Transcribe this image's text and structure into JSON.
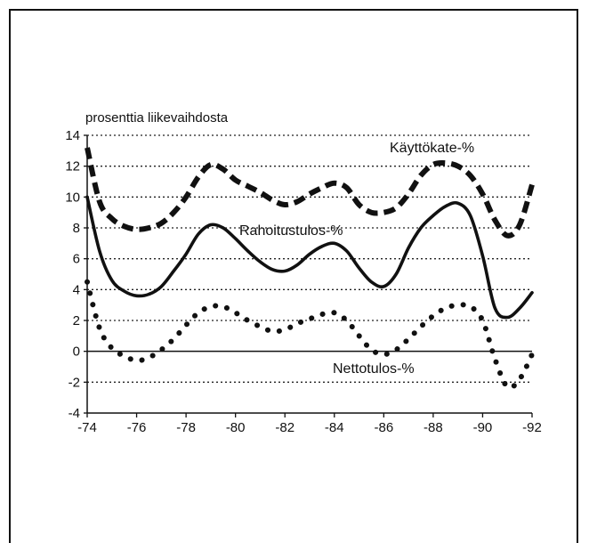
{
  "chart_data": {
    "type": "line",
    "ylabel": "prosenttia liikevaihdosta",
    "xlabel": "",
    "ylim": [
      -4,
      14
    ],
    "xlim": [
      1974,
      1992
    ],
    "yticks": [
      14,
      12,
      10,
      8,
      6,
      4,
      2,
      0,
      -2,
      -4
    ],
    "yticks_text": [
      "14",
      "12",
      "10",
      "8",
      "6",
      "4",
      "2",
      "0",
      "-2",
      "-4"
    ],
    "xticks": [
      1974,
      1976,
      1978,
      1980,
      1982,
      1984,
      1986,
      1988,
      1990,
      1992
    ],
    "xticks_text": [
      "-74",
      "-76",
      "-78",
      "-80",
      "-82",
      "-84",
      "-86",
      "-88",
      "-90",
      "-92"
    ],
    "grid": "horizontal dotted",
    "series": [
      {
        "name": "Käyttökate-%",
        "style": "dashed",
        "x": [
          1974,
          1974.5,
          1975,
          1975.5,
          1976,
          1976.5,
          1977,
          1977.5,
          1978,
          1978.5,
          1979,
          1979.5,
          1980,
          1980.5,
          1981,
          1981.5,
          1982,
          1982.5,
          1983,
          1983.5,
          1984,
          1984.5,
          1985,
          1985.5,
          1986,
          1986.5,
          1987,
          1987.5,
          1988,
          1988.5,
          1989,
          1989.5,
          1990,
          1990.5,
          1991,
          1991.5,
          1992
        ],
        "values": [
          13.2,
          9.7,
          8.6,
          8.1,
          7.9,
          8.0,
          8.3,
          9.0,
          10.0,
          11.3,
          12.1,
          11.8,
          11.1,
          10.7,
          10.3,
          9.8,
          9.5,
          9.7,
          10.2,
          10.6,
          10.9,
          10.6,
          9.5,
          9.0,
          9.0,
          9.3,
          10.2,
          11.4,
          12.1,
          12.2,
          12.0,
          11.4,
          10.2,
          8.5,
          7.5,
          8.2,
          10.8
        ]
      },
      {
        "name": "Rahoitustulos-%",
        "style": "thick",
        "x": [
          1974,
          1974.5,
          1975,
          1975.5,
          1976,
          1976.5,
          1977,
          1977.5,
          1978,
          1978.5,
          1979,
          1979.5,
          1980,
          1980.5,
          1981,
          1981.5,
          1982,
          1982.5,
          1983,
          1983.5,
          1984,
          1984.5,
          1985,
          1985.5,
          1986,
          1986.5,
          1987,
          1987.5,
          1988,
          1988.5,
          1989,
          1989.5,
          1990,
          1990.5,
          1991,
          1991.5,
          1992
        ],
        "values": [
          10.0,
          6.5,
          4.6,
          3.9,
          3.6,
          3.7,
          4.2,
          5.2,
          6.3,
          7.6,
          8.2,
          8.0,
          7.3,
          6.5,
          5.8,
          5.3,
          5.2,
          5.6,
          6.3,
          6.8,
          7.0,
          6.5,
          5.4,
          4.5,
          4.2,
          5.0,
          6.7,
          8.0,
          8.8,
          9.4,
          9.6,
          8.8,
          6.2,
          2.8,
          2.2,
          2.8,
          3.8
        ]
      },
      {
        "name": "Nettotulos-%",
        "style": "dotted",
        "x": [
          1974,
          1974.5,
          1975,
          1975.5,
          1976,
          1976.5,
          1977,
          1977.5,
          1978,
          1978.5,
          1979,
          1979.5,
          1980,
          1980.5,
          1981,
          1981.5,
          1982,
          1982.5,
          1983,
          1983.5,
          1984,
          1984.5,
          1985,
          1985.5,
          1986,
          1986.5,
          1987,
          1987.5,
          1988,
          1988.5,
          1989,
          1989.5,
          1990,
          1990.5,
          1991,
          1991.5,
          1992
        ],
        "values": [
          4.5,
          1.5,
          0.2,
          -0.3,
          -0.6,
          -0.4,
          0.1,
          0.8,
          1.7,
          2.5,
          2.9,
          2.9,
          2.5,
          2.0,
          1.6,
          1.3,
          1.4,
          1.8,
          2.1,
          2.4,
          2.5,
          2.0,
          1.0,
          0.1,
          -0.2,
          0.1,
          0.8,
          1.6,
          2.3,
          2.8,
          3.0,
          2.9,
          2.0,
          -0.5,
          -2.3,
          -1.8,
          -0.2
        ]
      }
    ],
    "annotations": [
      {
        "text": "Käyttökate-%",
        "series": "Käyttökate-%"
      },
      {
        "text": "Rahoitustulos-%",
        "series": "Rahoitustulos-%"
      },
      {
        "text": "Nettotulos-%",
        "series": "Nettotulos-%"
      }
    ]
  }
}
